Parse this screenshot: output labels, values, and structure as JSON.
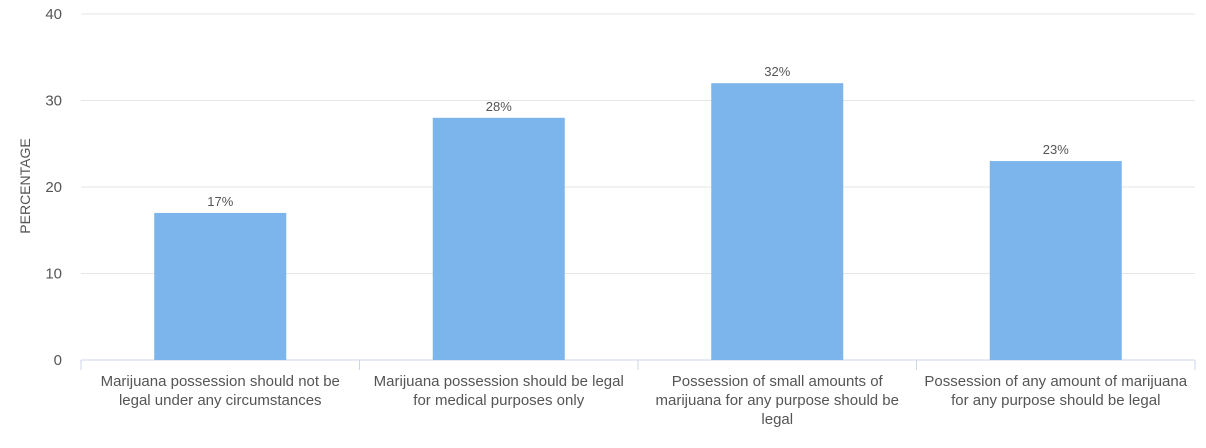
{
  "chart_data": {
    "type": "bar",
    "title": "",
    "xlabel": "",
    "ylabel": "PERCENTAGE",
    "ylim": [
      0,
      40
    ],
    "yticks": [
      0,
      10,
      20,
      30,
      40
    ],
    "grid": true,
    "color": "#7cb4ec",
    "categories": [
      "Marijuana possession should not be legal under any circumstances",
      "Marijuana possession should be legal for medical purposes only",
      "Possession of small amounts of marijuana for any purpose should be legal",
      "Possession of any amount of marijuana for any purpose should be legal"
    ],
    "values": [
      17,
      28,
      32,
      23
    ],
    "labels": [
      "17%",
      "28%",
      "32%",
      "23%"
    ]
  }
}
